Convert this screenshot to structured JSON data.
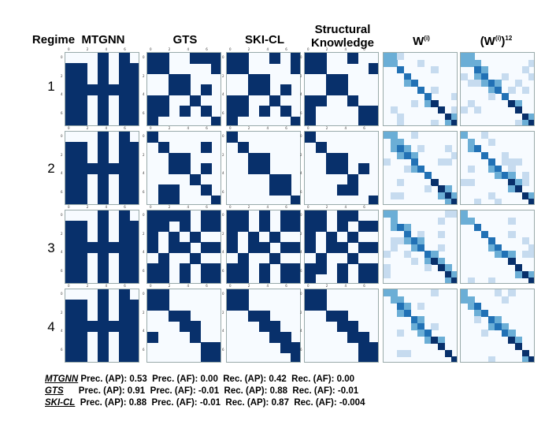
{
  "headers": {
    "regime": "Regime",
    "mtgnn": "MTGNN",
    "gts": "GTS",
    "skicl": "SKI-CL",
    "structural": "Structural\nKnowledge",
    "w": "W",
    "w_sup": "(i)",
    "w12_base": "(W",
    "w12_sup_i": "(i)",
    "w12_close": ")",
    "w12_sup_pow": "12"
  },
  "regimes": [
    "1",
    "2",
    "3",
    "4"
  ],
  "tick_labels": [
    "0",
    "2",
    "4",
    "6"
  ],
  "colors": {
    "dark": "#08306b",
    "light": "#f7fbff",
    "blue_mid": "#6baed6",
    "blue_light": "#c6dbef"
  },
  "matrices": {
    "mtgnn": [
      [
        "0001010",
        "1101011",
        "1101011",
        "1111111",
        "1101011",
        "1101011",
        "1101011"
      ],
      [
        "0001010",
        "1101011",
        "1101011",
        "1111111",
        "1101011",
        "1101011",
        "1101011"
      ],
      [
        "0001010",
        "1101011",
        "1101011",
        "1111111",
        "1101011",
        "1101011",
        "1101011"
      ],
      [
        "0001010",
        "1101011",
        "1101011",
        "1111111",
        "1101011",
        "1101011",
        "1101011"
      ]
    ],
    "gts": [
      [
        "1100111",
        "1100001",
        "0011000",
        "0011010",
        "1100100",
        "1101010",
        "1000001"
      ],
      [
        "1000000",
        "0100010",
        "0011000",
        "0011010",
        "0000100",
        "0110010",
        "0110001"
      ],
      [
        "1111011",
        "1101011",
        "1010100",
        "1011011",
        "0100100",
        "1101011",
        "1101011"
      ],
      [
        "1100000",
        "1100000",
        "0011000",
        "0001100",
        "1000100",
        "0000011",
        "0000011"
      ]
    ],
    "skicl": [
      [
        "1100101",
        "1100001",
        "0011000",
        "0011010",
        "1100100",
        "1101010",
        "1000001"
      ],
      [
        "1000000",
        "0100000",
        "0011000",
        "0011000",
        "0000110",
        "0000110",
        "0000001"
      ],
      [
        "1101011",
        "1101011",
        "1010100",
        "1011011",
        "0100100",
        "1101011",
        "1101011"
      ],
      [
        "1100000",
        "1100000",
        "0011000",
        "0001100",
        "0000110",
        "0000011",
        "0000001"
      ]
    ],
    "structural": [
      [
        "1100100",
        "1100001",
        "0011000",
        "0011000",
        "1100100",
        "1000011",
        "1000011"
      ],
      [
        "1000000",
        "0100000",
        "0011000",
        "0011010",
        "0000100",
        "0001100",
        "0000001"
      ],
      [
        "1101100",
        "1101011",
        "1010100",
        "1011011",
        "0100100",
        "1101011",
        "1001011"
      ],
      [
        "1100000",
        "1100000",
        "0011000",
        "0001100",
        "0000110",
        "0000011",
        "0000011"
      ]
    ]
  },
  "metrics": [
    {
      "model": "MTGNN",
      "text": " Prec. (AP): 0.53  Prec. (AF): 0.00  Rec. (AP): 0.42  Rec. (AF): 0.00"
    },
    {
      "model": "GTS",
      "text": "      Prec. (AP): 0.91  Prec. (AF): -0.01  Rec. (AP): 0.88  Rec. (AF): -0.01"
    },
    {
      "model": "SKI-CL",
      "text": "  Prec. (AP): 0.88  Prec. (AF): -0.01  Rec. (AP): 0.87  Rec. (AF): -0.004"
    }
  ]
}
